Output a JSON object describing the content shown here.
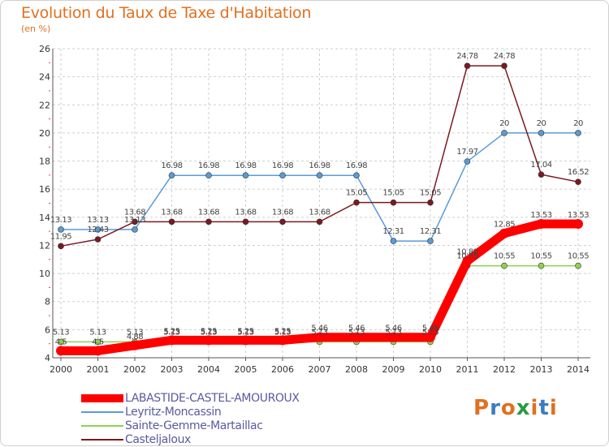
{
  "header": {
    "title": "Evolution du Taux de Taxe d'Habitation",
    "subtitle": "(en %)"
  },
  "logo": {
    "text": "Proxiti",
    "colors": [
      "#e07020",
      "#3a7ec0",
      "#e07020",
      "#2a9a40",
      "#e07020",
      "#3a7ec0",
      "#e07020"
    ]
  },
  "chart_data": {
    "type": "line",
    "x": [
      "2000",
      "2001",
      "2002",
      "2003",
      "2004",
      "2005",
      "2006",
      "2007",
      "2008",
      "2009",
      "2010",
      "2011",
      "2012",
      "2013",
      "2014"
    ],
    "ylim": [
      4,
      26
    ],
    "yticks": [
      4,
      6,
      8,
      10,
      12,
      14,
      16,
      18,
      20,
      22,
      24,
      26
    ],
    "grid": true,
    "legend_position": "bottom-left",
    "series": [
      {
        "name": "LABASTIDE-CASTEL-AMOUROUX",
        "color": "#ff0000",
        "values": [
          4.5,
          4.5,
          4.88,
          5.25,
          5.25,
          5.25,
          5.25,
          5.46,
          5.46,
          5.46,
          5.46,
          10.89,
          12.85,
          13.53,
          13.53
        ],
        "labels": [
          "4.5",
          "4.5",
          "4.88",
          "5.25",
          "5.25",
          "5.25",
          "5.25",
          "5.46",
          "5.46",
          "5.46",
          "5.46",
          "10.89",
          "12.85",
          "13.53",
          "13.53"
        ]
      },
      {
        "name": "Leyritz-Moncassin",
        "color": "#5a9bd5",
        "values": [
          13.13,
          13.13,
          13.13,
          16.98,
          16.98,
          16.98,
          16.98,
          16.98,
          16.98,
          12.31,
          12.31,
          17.97,
          20,
          20,
          20
        ],
        "labels": [
          "13.13",
          "13.13",
          "13.13",
          "16.98",
          "16.98",
          "16.98",
          "16.98",
          "16.98",
          "16.98",
          "12.31",
          "12.31",
          "17.97",
          "20",
          "20",
          "20"
        ]
      },
      {
        "name": "Sainte-Gemme-Martaillac",
        "color": "#90d050",
        "values": [
          5.13,
          5.13,
          5.13,
          5.13,
          5.13,
          5.13,
          5.13,
          5.13,
          5.13,
          5.13,
          5.13,
          10.55,
          10.55,
          10.55,
          10.55
        ],
        "labels": [
          "5.13",
          "5.13",
          "5.13",
          "5.13",
          "5.13",
          "5.13",
          "5.13",
          "5.13",
          "5.13",
          "5.13",
          "5.13",
          "10.55",
          "10.55",
          "10.55",
          "10.55"
        ]
      },
      {
        "name": "Casteljaloux",
        "color": "#7a1a20",
        "values": [
          11.95,
          12.43,
          13.68,
          13.68,
          13.68,
          13.68,
          13.68,
          13.68,
          15.05,
          15.05,
          15.05,
          24.78,
          24.78,
          17.04,
          16.52
        ],
        "labels": [
          "11.95",
          "12.43",
          "13.68",
          "13.68",
          "13.68",
          "13.68",
          "13.68",
          "13.68",
          "15.05",
          "15.05",
          "15.05",
          "24.78",
          "24.78",
          "17.04",
          "16.52"
        ]
      }
    ]
  }
}
